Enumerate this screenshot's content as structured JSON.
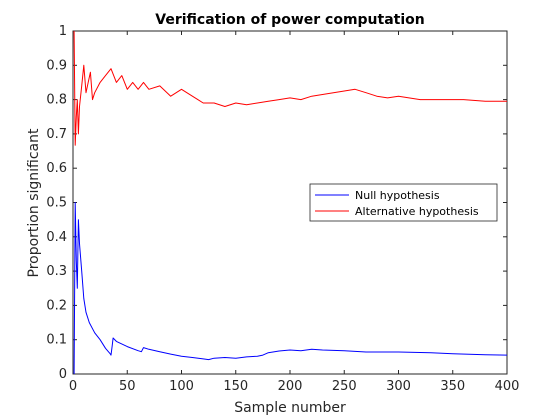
{
  "chart_data": {
    "type": "line",
    "title": "Verification of power computation",
    "xlabel": "Sample number",
    "ylabel": "Proportion significant",
    "xlim": [
      0,
      400
    ],
    "ylim": [
      0,
      1
    ],
    "xticks": [
      0,
      50,
      100,
      150,
      200,
      250,
      300,
      350,
      400
    ],
    "yticks": [
      0,
      0.1,
      0.2,
      0.3,
      0.4,
      0.5,
      0.6,
      0.7,
      0.8,
      0.9,
      1
    ],
    "xtick_labels": [
      "0",
      "50",
      "100",
      "150",
      "200",
      "250",
      "300",
      "350",
      "400"
    ],
    "ytick_labels": [
      "0",
      "0.1",
      "0.2",
      "0.3",
      "0.4",
      "0.5",
      "0.6",
      "0.7",
      "0.8",
      "0.9",
      "1"
    ],
    "grid": false,
    "legend_position": "center-right",
    "series": [
      {
        "name": "Null hypothesis",
        "color": "#0000ff",
        "points": [
          [
            1,
            0
          ],
          [
            2,
            0.5
          ],
          [
            3,
            0.33
          ],
          [
            4,
            0.25
          ],
          [
            5,
            0.45
          ],
          [
            6,
            0.38
          ],
          [
            8,
            0.3
          ],
          [
            10,
            0.22
          ],
          [
            12,
            0.18
          ],
          [
            15,
            0.15
          ],
          [
            20,
            0.12
          ],
          [
            25,
            0.1
          ],
          [
            30,
            0.075
          ],
          [
            34,
            0.06
          ],
          [
            35,
            0.055
          ],
          [
            36,
            0.08
          ],
          [
            37,
            0.105
          ],
          [
            40,
            0.095
          ],
          [
            50,
            0.08
          ],
          [
            60,
            0.068
          ],
          [
            63,
            0.065
          ],
          [
            65,
            0.077
          ],
          [
            70,
            0.072
          ],
          [
            80,
            0.065
          ],
          [
            90,
            0.058
          ],
          [
            100,
            0.052
          ],
          [
            110,
            0.048
          ],
          [
            120,
            0.044
          ],
          [
            125,
            0.042
          ],
          [
            130,
            0.046
          ],
          [
            140,
            0.048
          ],
          [
            150,
            0.046
          ],
          [
            160,
            0.05
          ],
          [
            170,
            0.052
          ],
          [
            175,
            0.055
          ],
          [
            180,
            0.062
          ],
          [
            190,
            0.067
          ],
          [
            200,
            0.07
          ],
          [
            210,
            0.068
          ],
          [
            220,
            0.072
          ],
          [
            230,
            0.07
          ],
          [
            250,
            0.068
          ],
          [
            270,
            0.064
          ],
          [
            300,
            0.064
          ],
          [
            330,
            0.062
          ],
          [
            350,
            0.059
          ],
          [
            380,
            0.056
          ],
          [
            400,
            0.055
          ]
        ]
      },
      {
        "name": "Alternative hypothesis",
        "color": "#ff0000",
        "points": [
          [
            1,
            1
          ],
          [
            2,
            0.667
          ],
          [
            3,
            0.75
          ],
          [
            4,
            0.8
          ],
          [
            5,
            0.7
          ],
          [
            6,
            0.78
          ],
          [
            8,
            0.84
          ],
          [
            10,
            0.9
          ],
          [
            12,
            0.82
          ],
          [
            14,
            0.85
          ],
          [
            16,
            0.88
          ],
          [
            18,
            0.8
          ],
          [
            20,
            0.82
          ],
          [
            25,
            0.85
          ],
          [
            30,
            0.87
          ],
          [
            35,
            0.89
          ],
          [
            40,
            0.85
          ],
          [
            45,
            0.87
          ],
          [
            50,
            0.83
          ],
          [
            55,
            0.85
          ],
          [
            60,
            0.83
          ],
          [
            65,
            0.85
          ],
          [
            70,
            0.83
          ],
          [
            80,
            0.84
          ],
          [
            90,
            0.81
          ],
          [
            100,
            0.83
          ],
          [
            110,
            0.81
          ],
          [
            115,
            0.8
          ],
          [
            120,
            0.79
          ],
          [
            130,
            0.79
          ],
          [
            140,
            0.78
          ],
          [
            150,
            0.79
          ],
          [
            160,
            0.785
          ],
          [
            170,
            0.79
          ],
          [
            180,
            0.795
          ],
          [
            190,
            0.8
          ],
          [
            200,
            0.805
          ],
          [
            210,
            0.8
          ],
          [
            220,
            0.81
          ],
          [
            230,
            0.815
          ],
          [
            240,
            0.82
          ],
          [
            250,
            0.825
          ],
          [
            260,
            0.83
          ],
          [
            270,
            0.82
          ],
          [
            280,
            0.81
          ],
          [
            290,
            0.805
          ],
          [
            300,
            0.81
          ],
          [
            320,
            0.8
          ],
          [
            340,
            0.8
          ],
          [
            360,
            0.8
          ],
          [
            380,
            0.795
          ],
          [
            400,
            0.795
          ]
        ]
      }
    ]
  }
}
